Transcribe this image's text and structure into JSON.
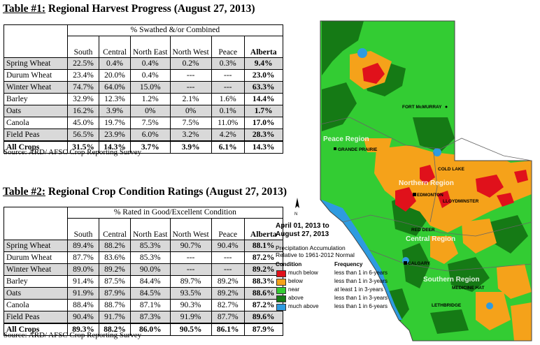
{
  "table1": {
    "title_prefix": "Table #1:",
    "title_rest": " Regional Harvest Progress (August 27, 2013)",
    "group_header": "% Swathed &/or Combined",
    "columns": [
      "South",
      "Central",
      "North East",
      "North West",
      "Peace",
      "Alberta"
    ],
    "rows": [
      {
        "name": "Spring Wheat",
        "cells": [
          "22.5%",
          "0.4%",
          "0.4%",
          "0.2%",
          "0.3%",
          "9.4%"
        ]
      },
      {
        "name": "Durum Wheat",
        "cells": [
          "23.4%",
          "20.0%",
          "0.4%",
          "---",
          "---",
          "23.0%"
        ]
      },
      {
        "name": "Winter Wheat",
        "cells": [
          "74.7%",
          "64.0%",
          "15.0%",
          "---",
          "---",
          "63.3%"
        ]
      },
      {
        "name": "Barley",
        "cells": [
          "32.9%",
          "12.3%",
          "1.2%",
          "2.1%",
          "1.6%",
          "14.4%"
        ]
      },
      {
        "name": "Oats",
        "cells": [
          "16.2%",
          "3.9%",
          "0%",
          "0%",
          "0.1%",
          "1.7%"
        ]
      },
      {
        "name": "Canola",
        "cells": [
          "45.0%",
          "19.7%",
          "7.5%",
          "7.5%",
          "11.0%",
          "17.0%"
        ]
      },
      {
        "name": "Field Peas",
        "cells": [
          "56.5%",
          "23.9%",
          "6.0%",
          "3.2%",
          "4.2%",
          "28.3%"
        ]
      }
    ],
    "total": {
      "name": "All Crops",
      "cells": [
        "31.5%",
        "14.3%",
        "3.7%",
        "3.9%",
        "6.1%",
        "14.3%"
      ]
    },
    "source": "Source: ARD/ AFSC Crop Reporting Survey"
  },
  "table2": {
    "title_prefix": "Table #2:",
    "title_rest": " Regional Crop Condition Ratings (August 27, 2013)",
    "group_header": "% Rated in Good/Excellent Condition",
    "columns": [
      "South",
      "Central",
      "North East",
      "North West",
      "Peace",
      "Alberta"
    ],
    "rows": [
      {
        "name": "Spring Wheat",
        "cells": [
          "89.4%",
          "88.2%",
          "85.3%",
          "90.7%",
          "90.4%",
          "88.1%"
        ]
      },
      {
        "name": "Durum Wheat",
        "cells": [
          "87.7%",
          "83.6%",
          "85.3%",
          "---",
          "---",
          "87.2%"
        ]
      },
      {
        "name": "Winter Wheat",
        "cells": [
          "89.0%",
          "89.2%",
          "90.0%",
          "---",
          "---",
          "89.2%"
        ]
      },
      {
        "name": "Barley",
        "cells": [
          "91.4%",
          "87.5%",
          "84.4%",
          "89.7%",
          "89.2%",
          "88.3%"
        ]
      },
      {
        "name": "Oats",
        "cells": [
          "91.9%",
          "87.9%",
          "84.5%",
          "93.5%",
          "89.2%",
          "88.6%"
        ]
      },
      {
        "name": "Canola",
        "cells": [
          "88.4%",
          "88.7%",
          "87.1%",
          "90.3%",
          "82.7%",
          "87.2%"
        ]
      },
      {
        "name": "Field Peas",
        "cells": [
          "90.4%",
          "91.7%",
          "87.3%",
          "91.9%",
          "87.7%",
          "89.6%"
        ]
      }
    ],
    "total": {
      "name": "All Crops",
      "cells": [
        "89.3%",
        "88.2%",
        "86.0%",
        "90.5%",
        "86.1%",
        "87.9%"
      ]
    },
    "source": "Source: ARD/ AFSC Crop Reporting Survey"
  },
  "map": {
    "date_range_line1": "April 01, 2013 to",
    "date_range_line2": "August 27, 2013",
    "subtitle_line1": "Precipitation Accumulation",
    "subtitle_line2": "Relative to 1961-2012 Normal",
    "legend_condition_header": "Condition",
    "legend_frequency_header": "Frequency",
    "legend": [
      {
        "condition": "much below",
        "frequency": "less than 1 in 6-years",
        "color": "#e0111b"
      },
      {
        "condition": "below",
        "frequency": "less than 1 in 3-years",
        "color": "#f5a21a"
      },
      {
        "condition": "near",
        "frequency": "at least 1 in 3-years",
        "color": "#33cc33"
      },
      {
        "condition": "above",
        "frequency": "less than 1 in 3-years",
        "color": "#157a15"
      },
      {
        "condition": "much above",
        "frequency": "less than 1 in 6-years",
        "color": "#2e9be0"
      }
    ],
    "places": {
      "fort_mcmurray": "FORT McMURRAY",
      "grande_prairie": "GRANDE PRAIRIE",
      "cold_lake": "COLD LAKE",
      "edmonton": "EDMONTON",
      "lloydminster": "LLOYDMINSTER",
      "red_deer": "RED DEER",
      "calgary": "CALGARY",
      "medicine_hat": "MEDICINE HAT",
      "lethbridge": "LETHBRIDGE"
    },
    "regions": {
      "peace": "Peace Region",
      "northern": "Northern Region",
      "central": "Central Region",
      "southern": "Southern Region"
    }
  }
}
